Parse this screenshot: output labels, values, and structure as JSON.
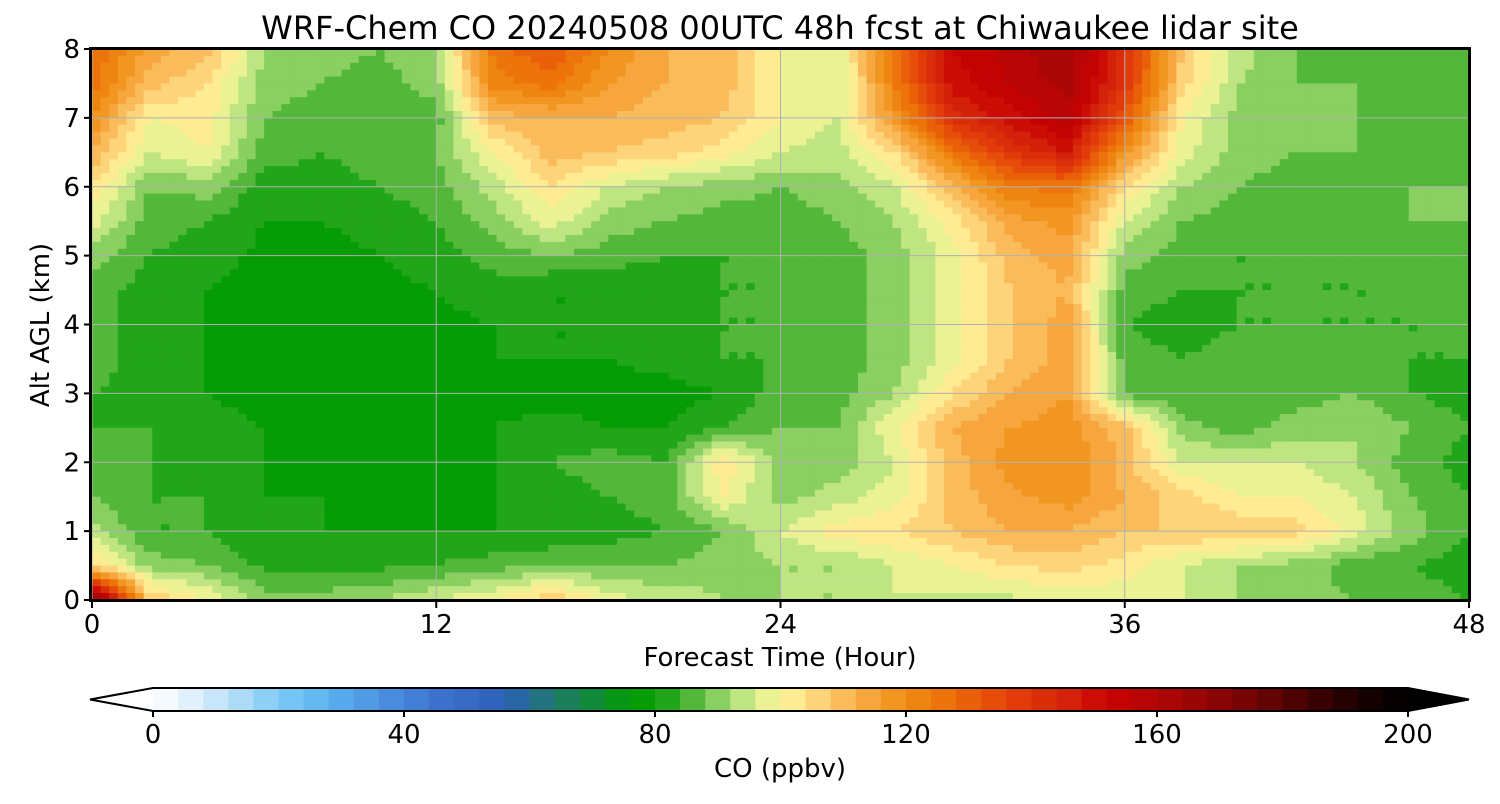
{
  "chart_data": {
    "type": "heatmap",
    "title": "WRF-Chem CO  20240508 00UTC 48h fcst at Chiwaukee lidar site",
    "xlabel": "Forecast Time (Hour)",
    "ylabel": "Alt AGL (km)",
    "xlim": [
      0,
      48
    ],
    "ylim": [
      0,
      8
    ],
    "xticks": [
      0,
      12,
      24,
      36,
      48
    ],
    "yticks": [
      0,
      1,
      2,
      3,
      4,
      5,
      6,
      7,
      8
    ],
    "grid": true,
    "x": [
      0,
      2,
      4,
      6,
      8,
      10,
      12,
      14,
      16,
      18,
      20,
      22,
      24,
      26,
      28,
      30,
      32,
      34,
      36,
      38,
      40,
      42,
      44,
      46,
      48
    ],
    "y": [
      0,
      0.5,
      1,
      1.5,
      2,
      2.5,
      3,
      3.5,
      4,
      4.5,
      5,
      5.5,
      6,
      6.5,
      7,
      7.5,
      8
    ],
    "z": [
      [
        175,
        108,
        100,
        90,
        90,
        92,
        96,
        100,
        108,
        98,
        95,
        92,
        92,
        92,
        96,
        95,
        95,
        96,
        97,
        96,
        92,
        90,
        88,
        86,
        84
      ],
      [
        105,
        90,
        88,
        83,
        82,
        83,
        84,
        86,
        88,
        88,
        88,
        90,
        92,
        92,
        96,
        100,
        104,
        106,
        102,
        96,
        92,
        90,
        86,
        84,
        82
      ],
      [
        94,
        84,
        84,
        80,
        80,
        80,
        80,
        80,
        80,
        82,
        84,
        88,
        96,
        102,
        104,
        108,
        112,
        112,
        108,
        108,
        108,
        106,
        98,
        90,
        84
      ],
      [
        88,
        84,
        84,
        80,
        80,
        79,
        79,
        80,
        82,
        84,
        86,
        100,
        90,
        94,
        98,
        110,
        115,
        118,
        112,
        106,
        100,
        100,
        96,
        88,
        84
      ],
      [
        86,
        84,
        82,
        80,
        79,
        79,
        78,
        80,
        84,
        86,
        84,
        104,
        90,
        90,
        96,
        110,
        118,
        120,
        110,
        96,
        96,
        96,
        92,
        86,
        82
      ],
      [
        84,
        84,
        82,
        80,
        78,
        78,
        78,
        80,
        82,
        80,
        80,
        84,
        88,
        88,
        100,
        112,
        116,
        118,
        110,
        90,
        86,
        90,
        92,
        88,
        84
      ],
      [
        84,
        82,
        80,
        78,
        78,
        77,
        77,
        78,
        78,
        78,
        78,
        80,
        86,
        86,
        92,
        104,
        112,
        116,
        86,
        84,
        84,
        86,
        88,
        84,
        82
      ],
      [
        86,
        82,
        80,
        78,
        78,
        78,
        78,
        80,
        80,
        80,
        82,
        84,
        84,
        86,
        90,
        98,
        108,
        114,
        86,
        84,
        86,
        88,
        86,
        84,
        84
      ],
      [
        86,
        82,
        80,
        78,
        78,
        79,
        79,
        80,
        80,
        80,
        82,
        84,
        84,
        86,
        90,
        98,
        108,
        114,
        84,
        82,
        84,
        84,
        84,
        84,
        84
      ],
      [
        86,
        82,
        80,
        78,
        78,
        79,
        80,
        82,
        80,
        80,
        82,
        84,
        84,
        86,
        90,
        98,
        108,
        112,
        86,
        84,
        84,
        84,
        84,
        84,
        86
      ],
      [
        90,
        84,
        82,
        79,
        78,
        80,
        82,
        86,
        88,
        86,
        84,
        84,
        84,
        86,
        90,
        98,
        110,
        114,
        90,
        86,
        84,
        84,
        84,
        86,
        86
      ],
      [
        98,
        86,
        84,
        80,
        80,
        82,
        84,
        90,
        98,
        90,
        88,
        86,
        86,
        88,
        92,
        102,
        114,
        118,
        96,
        88,
        86,
        86,
        86,
        88,
        88
      ],
      [
        104,
        88,
        90,
        82,
        82,
        84,
        86,
        94,
        104,
        96,
        92,
        90,
        88,
        90,
        96,
        110,
        124,
        126,
        104,
        92,
        88,
        86,
        86,
        88,
        88
      ],
      [
        112,
        96,
        100,
        86,
        84,
        86,
        88,
        100,
        110,
        108,
        106,
        102,
        96,
        94,
        104,
        126,
        140,
        148,
        118,
        98,
        90,
        88,
        88,
        88,
        86
      ],
      [
        120,
        100,
        102,
        88,
        86,
        84,
        86,
        110,
        112,
        112,
        110,
        108,
        100,
        96,
        118,
        142,
        150,
        158,
        132,
        100,
        90,
        88,
        88,
        86,
        86
      ],
      [
        126,
        110,
        104,
        90,
        88,
        86,
        90,
        122,
        126,
        116,
        112,
        110,
        100,
        96,
        124,
        150,
        156,
        162,
        140,
        106,
        92,
        88,
        88,
        86,
        86
      ],
      [
        128,
        114,
        110,
        92,
        90,
        88,
        92,
        126,
        132,
        120,
        112,
        110,
        100,
        96,
        126,
        152,
        158,
        164,
        142,
        108,
        94,
        88,
        86,
        86,
        86
      ]
    ],
    "colorbar": {
      "label": "CO  (ppbv)",
      "ticks": [
        0,
        40,
        80,
        120,
        160,
        200
      ],
      "min": 0,
      "max": 200,
      "step": 4,
      "extend": "both",
      "stops": [
        [
          0,
          "#ffffff"
        ],
        [
          8,
          "#d6ecfa"
        ],
        [
          20,
          "#7fcaf4"
        ],
        [
          28,
          "#5ab2ee"
        ],
        [
          44,
          "#3f75d2"
        ],
        [
          56,
          "#2c5fb8"
        ],
        [
          64,
          "#1f7a6a"
        ],
        [
          72,
          "#0b8f2a"
        ],
        [
          76,
          "#009a00"
        ],
        [
          80,
          "#0a9e0a"
        ],
        [
          84,
          "#3aae28"
        ],
        [
          88,
          "#6cc24a"
        ],
        [
          92,
          "#a7dc78"
        ],
        [
          96,
          "#d6ee8e"
        ],
        [
          100,
          "#fff59a"
        ],
        [
          104,
          "#ffe08a"
        ],
        [
          108,
          "#fcc86a"
        ],
        [
          112,
          "#f8ae4a"
        ],
        [
          120,
          "#f08e14"
        ],
        [
          128,
          "#ec6a08"
        ],
        [
          136,
          "#e4420a"
        ],
        [
          148,
          "#d01a0a"
        ],
        [
          152,
          "#c80000"
        ],
        [
          160,
          "#b20606"
        ],
        [
          168,
          "#920404"
        ],
        [
          176,
          "#6c0404"
        ],
        [
          184,
          "#420202"
        ],
        [
          192,
          "#1c0000"
        ],
        [
          200,
          "#000000"
        ]
      ]
    }
  }
}
